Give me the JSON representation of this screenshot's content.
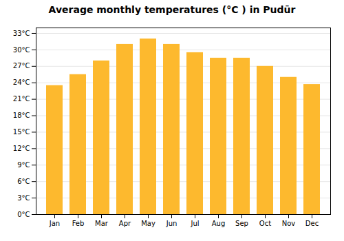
{
  "chart_data": {
    "type": "bar",
    "title": "Average monthly temperatures (°C ) in Pudūr",
    "categories": [
      "Jan",
      "Feb",
      "Mar",
      "Apr",
      "May",
      "Jun",
      "Jul",
      "Aug",
      "Sep",
      "Oct",
      "Nov",
      "Dec"
    ],
    "values": [
      23.5,
      25.5,
      28.0,
      31.0,
      32.0,
      31.0,
      29.5,
      28.5,
      28.5,
      27.0,
      25.0,
      23.7
    ],
    "color": "#FDB92E",
    "ylim": [
      0,
      34
    ],
    "yticks": [
      {
        "value": 0,
        "label": "0°C"
      },
      {
        "value": 3,
        "label": "3°C"
      },
      {
        "value": 6,
        "label": "6°C"
      },
      {
        "value": 9,
        "label": "9°C"
      },
      {
        "value": 12,
        "label": "12°C"
      },
      {
        "value": 15,
        "label": "15°C"
      },
      {
        "value": 18,
        "label": "18°C"
      },
      {
        "value": 21,
        "label": "21°C"
      },
      {
        "value": 24,
        "label": "24°C"
      },
      {
        "value": 27,
        "label": "27°C"
      },
      {
        "value": 30,
        "label": "30°C"
      },
      {
        "value": 33,
        "label": "33°C"
      }
    ],
    "grid": true
  }
}
